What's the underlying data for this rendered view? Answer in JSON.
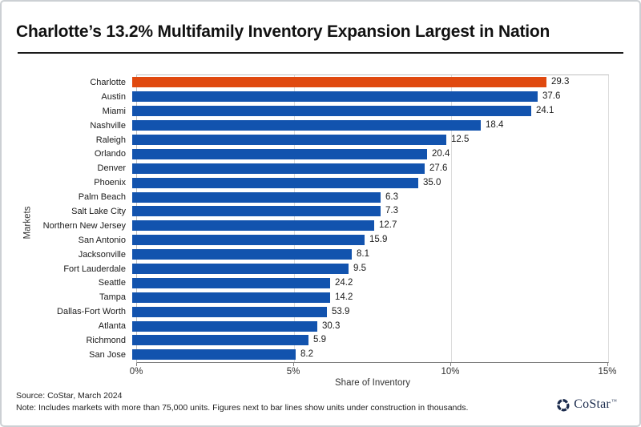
{
  "header": {
    "title": "Charlotte’s 13.2% Multifamily Inventory Expansion Largest in Nation"
  },
  "chart_data": {
    "type": "bar",
    "orientation": "horizontal",
    "title": "Charlotte’s 13.2% Multifamily Inventory Expansion Largest in Nation",
    "xlabel": "Share of Inventory",
    "ylabel": "Markets",
    "xlim": [
      0,
      15
    ],
    "x_ticks": [
      "0%",
      "5%",
      "10%",
      "15%"
    ],
    "x_tick_values": [
      0,
      5,
      10,
      15
    ],
    "grid": "vertical-light",
    "bar_color": "#1253AE",
    "highlight_color": "#E0490F",
    "highlight_index": 0,
    "categories": [
      "Charlotte",
      "Austin",
      "Miami",
      "Nashville",
      "Raleigh",
      "Orlando",
      "Denver",
      "Phoenix",
      "Palm Beach",
      "Salt Lake City",
      "Northern New Jersey",
      "San Antonio",
      "Jacksonville",
      "Fort Lauderdale",
      "Seattle",
      "Tampa",
      "Dallas-Fort Worth",
      "Atlanta",
      "Richmond",
      "San Jose"
    ],
    "values": [
      13.2,
      12.9,
      12.7,
      11.1,
      10.0,
      9.4,
      9.3,
      9.1,
      7.9,
      7.9,
      7.7,
      7.4,
      7.0,
      6.9,
      6.3,
      6.3,
      6.2,
      5.9,
      5.6,
      5.2
    ],
    "bar_labels": [
      "29.3",
      "37.6",
      "24.1",
      "18.4",
      "12.5",
      "20.4",
      "27.6",
      "35.0",
      "6.3",
      "7.3",
      "12.7",
      "15.9",
      "8.1",
      "9.5",
      "24.2",
      "14.2",
      "53.9",
      "30.3",
      "5.9",
      "8.2"
    ],
    "bar_labels_meaning": "units under construction in thousands"
  },
  "footer": {
    "source": "Source: CoStar, March 2024",
    "note": "Note: Includes markets with more than 75,000 units. Figures next to bar lines show units under construction in thousands.",
    "logo_text": "CoStar",
    "logo_tm": "™"
  },
  "colors": {
    "highlight_orange": "#E0490F",
    "bar_blue": "#1253AE",
    "logo_navy": "#1B2B4D"
  }
}
